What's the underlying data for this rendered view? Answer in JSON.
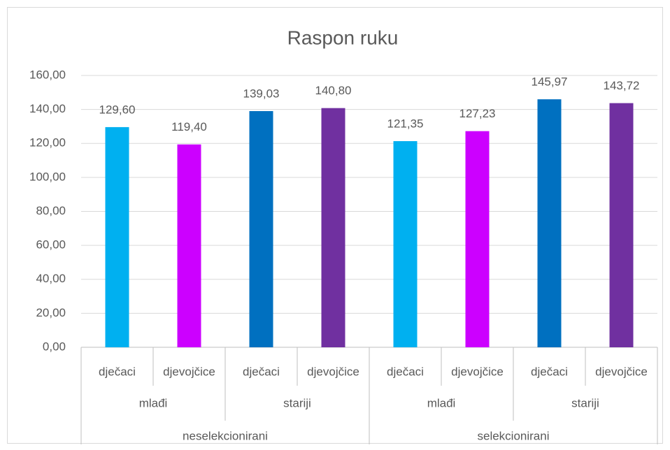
{
  "chart_data": {
    "type": "bar",
    "title": "Raspon ruku",
    "groups": [
      {
        "name": "neselekcionirani",
        "subgroups": [
          {
            "name": "mlađi",
            "categories": [
              "dječaci",
              "djevojčice"
            ],
            "values": [
              129.6,
              119.4
            ],
            "value_labels": [
              "129,60",
              "119,40"
            ],
            "colors": [
              "#00b0f0",
              "#cc00ff"
            ]
          },
          {
            "name": "stariji",
            "categories": [
              "dječaci",
              "djevojčice"
            ],
            "values": [
              139.03,
              140.8
            ],
            "value_labels": [
              "139,03",
              "140,80"
            ],
            "colors": [
              "#0070c0",
              "#7030a0"
            ]
          }
        ]
      },
      {
        "name": "selekcionirani",
        "subgroups": [
          {
            "name": "mlađi",
            "categories": [
              "dječaci",
              "djevojčice"
            ],
            "values": [
              121.35,
              127.23
            ],
            "value_labels": [
              "121,35",
              "127,23"
            ],
            "colors": [
              "#00b0f0",
              "#cc00ff"
            ]
          },
          {
            "name": "stariji",
            "categories": [
              "dječaci",
              "djevojčice"
            ],
            "values": [
              145.97,
              143.72
            ],
            "value_labels": [
              "145,97",
              "143,72"
            ],
            "colors": [
              "#0070c0",
              "#7030a0"
            ]
          }
        ]
      }
    ],
    "ylim": [
      0,
      160
    ],
    "yticks": [
      {
        "value": 0,
        "label": "0,00"
      },
      {
        "value": 20,
        "label": "20,00"
      },
      {
        "value": 40,
        "label": "40,00"
      },
      {
        "value": 60,
        "label": "60,00"
      },
      {
        "value": 80,
        "label": "80,00"
      },
      {
        "value": 100,
        "label": "100,00"
      },
      {
        "value": 120,
        "label": "120,00"
      },
      {
        "value": 140,
        "label": "140,00"
      },
      {
        "value": 160,
        "label": "160,00"
      }
    ],
    "grid": true
  }
}
